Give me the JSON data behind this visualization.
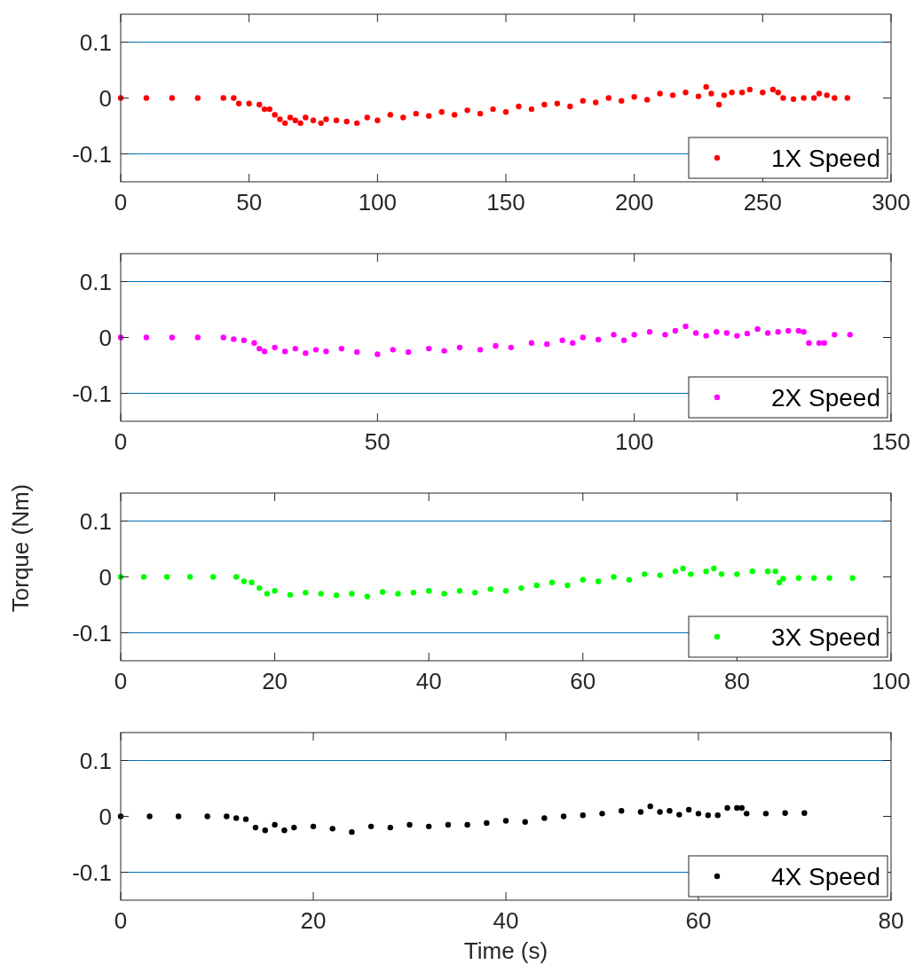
{
  "chart_data": [
    {
      "type": "scatter",
      "xlim": [
        0,
        300
      ],
      "xticks": [
        0,
        50,
        100,
        150,
        200,
        250,
        300
      ],
      "ylim": [
        -0.15,
        0.15
      ],
      "yticks": [
        -0.1,
        0,
        0.1
      ],
      "legend": "bottom right",
      "marker": "circle",
      "ref_lines": [
        {
          "axis": "y",
          "value": 0.1,
          "color": "#0072bd"
        },
        {
          "axis": "y",
          "value": -0.1,
          "color": "#0072bd"
        }
      ],
      "series": [
        {
          "name": "1X Speed",
          "color": "#ff0000",
          "x": [
            0,
            10,
            20,
            30,
            40,
            44,
            46,
            50,
            54,
            56,
            58,
            60,
            62,
            64,
            66,
            68,
            70,
            72,
            75,
            78,
            80,
            84,
            88,
            92,
            96,
            100,
            105,
            110,
            115,
            120,
            125,
            130,
            135,
            140,
            145,
            150,
            155,
            160,
            165,
            170,
            175,
            180,
            185,
            190,
            195,
            200,
            205,
            210,
            215,
            220,
            225,
            228,
            230,
            233,
            235,
            238,
            242,
            245,
            250,
            254,
            256,
            258,
            262,
            266,
            270,
            272,
            275,
            278,
            283
          ],
          "values": [
            0,
            0,
            0,
            0,
            0,
            0,
            -0.01,
            -0.01,
            -0.012,
            -0.02,
            -0.02,
            -0.03,
            -0.038,
            -0.045,
            -0.035,
            -0.04,
            -0.045,
            -0.035,
            -0.04,
            -0.045,
            -0.038,
            -0.04,
            -0.042,
            -0.045,
            -0.035,
            -0.04,
            -0.03,
            -0.035,
            -0.028,
            -0.032,
            -0.025,
            -0.03,
            -0.022,
            -0.028,
            -0.02,
            -0.025,
            -0.015,
            -0.02,
            -0.012,
            -0.01,
            -0.015,
            -0.005,
            -0.008,
            0,
            -0.005,
            0.002,
            -0.003,
            0.008,
            0.005,
            0.01,
            0.003,
            0.02,
            0.008,
            -0.012,
            0.005,
            0.01,
            0.01,
            0.015,
            0.01,
            0.015,
            0.01,
            0,
            -0.002,
            0,
            0,
            0.008,
            0.005,
            0,
            0
          ]
        }
      ]
    },
    {
      "type": "scatter",
      "xlim": [
        0,
        150
      ],
      "xticks": [
        0,
        50,
        100,
        150
      ],
      "ylim": [
        -0.15,
        0.15
      ],
      "yticks": [
        -0.1,
        0,
        0.1
      ],
      "legend": "bottom right",
      "marker": "circle",
      "ref_lines": [
        {
          "axis": "y",
          "value": 0.1,
          "color": "#0072bd"
        },
        {
          "axis": "y",
          "value": -0.1,
          "color": "#0072bd"
        }
      ],
      "series": [
        {
          "name": "2X Speed",
          "color": "#ff00ff",
          "x": [
            0,
            5,
            10,
            15,
            20,
            22,
            24,
            26,
            27,
            28,
            30,
            32,
            34,
            36,
            38,
            40,
            43,
            46,
            50,
            53,
            56,
            60,
            63,
            66,
            70,
            73,
            76,
            80,
            83,
            86,
            88,
            90,
            93,
            96,
            98,
            100,
            103,
            106,
            108,
            110,
            112,
            114,
            116,
            118,
            120,
            122,
            124,
            126,
            128,
            130,
            132,
            133,
            134,
            136,
            137,
            139,
            142
          ],
          "values": [
            0,
            0,
            0,
            0,
            0,
            -0.003,
            -0.005,
            -0.01,
            -0.02,
            -0.025,
            -0.018,
            -0.025,
            -0.02,
            -0.028,
            -0.022,
            -0.025,
            -0.02,
            -0.026,
            -0.03,
            -0.022,
            -0.026,
            -0.02,
            -0.024,
            -0.018,
            -0.022,
            -0.015,
            -0.018,
            -0.01,
            -0.012,
            -0.005,
            -0.01,
            0,
            -0.004,
            0.005,
            -0.005,
            0.005,
            0.01,
            0.005,
            0.012,
            0.02,
            0.008,
            0.003,
            0.01,
            0.008,
            0.003,
            0.007,
            0.015,
            0.008,
            0.01,
            0.012,
            0.012,
            0.01,
            -0.01,
            -0.01,
            -0.01,
            0.005,
            0.005
          ]
        }
      ]
    },
    {
      "type": "scatter",
      "ylabel": "Torque (Nm)",
      "xlim": [
        0,
        100
      ],
      "xticks": [
        0,
        20,
        40,
        60,
        80,
        100
      ],
      "ylim": [
        -0.15,
        0.15
      ],
      "yticks": [
        -0.1,
        0,
        0.1
      ],
      "legend": "bottom right",
      "marker": "circle",
      "ref_lines": [
        {
          "axis": "y",
          "value": 0.1,
          "color": "#0072bd"
        },
        {
          "axis": "y",
          "value": -0.1,
          "color": "#0072bd"
        }
      ],
      "series": [
        {
          "name": "3X Speed",
          "color": "#00ff00",
          "x": [
            0,
            3,
            6,
            9,
            12,
            15,
            16,
            17,
            18,
            19,
            20,
            22,
            24,
            26,
            28,
            30,
            32,
            34,
            36,
            38,
            40,
            42,
            44,
            46,
            48,
            50,
            52,
            54,
            56,
            58,
            60,
            62,
            64,
            66,
            68,
            70,
            72,
            73,
            74,
            76,
            77,
            78,
            80,
            82,
            84,
            85,
            85.5,
            86,
            88,
            90,
            92,
            95
          ],
          "values": [
            0,
            0,
            0,
            0,
            0,
            0,
            -0.008,
            -0.01,
            -0.02,
            -0.03,
            -0.025,
            -0.032,
            -0.028,
            -0.03,
            -0.033,
            -0.03,
            -0.035,
            -0.027,
            -0.03,
            -0.028,
            -0.025,
            -0.03,
            -0.025,
            -0.028,
            -0.022,
            -0.025,
            -0.02,
            -0.015,
            -0.01,
            -0.015,
            -0.005,
            -0.008,
            0,
            -0.005,
            0.005,
            0.003,
            0.01,
            0.015,
            0.005,
            0.01,
            0.015,
            0.005,
            0.005,
            0.01,
            0.01,
            0.01,
            -0.01,
            -0.003,
            -0.002,
            -0.002,
            -0.002,
            -0.002
          ]
        }
      ]
    },
    {
      "type": "scatter",
      "xlabel": "Time (s)",
      "xlim": [
        0,
        80
      ],
      "xticks": [
        0,
        20,
        40,
        60,
        80
      ],
      "ylim": [
        -0.15,
        0.15
      ],
      "yticks": [
        -0.1,
        0,
        0.1
      ],
      "legend": "bottom right",
      "marker": "circle",
      "ref_lines": [
        {
          "axis": "y",
          "value": 0.1,
          "color": "#0072bd"
        },
        {
          "axis": "y",
          "value": -0.1,
          "color": "#0072bd"
        }
      ],
      "series": [
        {
          "name": "4X Speed",
          "color": "#000000",
          "x": [
            0,
            3,
            6,
            9,
            11,
            12,
            13,
            14,
            15,
            16,
            17,
            18,
            20,
            22,
            24,
            26,
            28,
            30,
            32,
            34,
            36,
            38,
            40,
            42,
            44,
            46,
            48,
            50,
            52,
            54,
            55,
            56,
            57,
            58,
            59,
            60,
            61,
            62,
            63,
            64,
            64.5,
            65,
            67,
            69,
            71
          ],
          "values": [
            0,
            0,
            0,
            0,
            0,
            -0.003,
            -0.005,
            -0.02,
            -0.025,
            -0.015,
            -0.025,
            -0.02,
            -0.018,
            -0.022,
            -0.028,
            -0.018,
            -0.02,
            -0.015,
            -0.018,
            -0.015,
            -0.015,
            -0.012,
            -0.008,
            -0.01,
            -0.003,
            0,
            0.002,
            0.005,
            0.01,
            0.008,
            0.018,
            0.008,
            0.01,
            0.003,
            0.012,
            0.005,
            0.002,
            0.002,
            0.015,
            0.015,
            0.015,
            0.005,
            0.005,
            0.006,
            0.006
          ]
        }
      ]
    }
  ]
}
